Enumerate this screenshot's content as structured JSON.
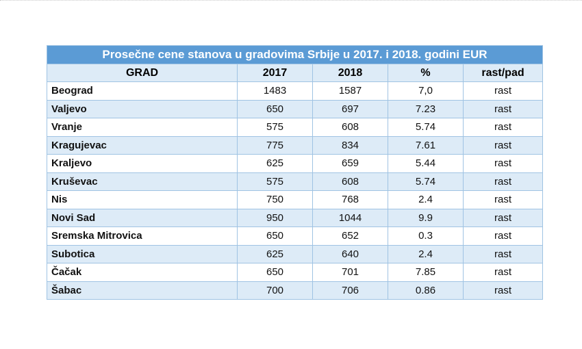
{
  "table": {
    "title": "Prosečne cene stanova u gradovima Srbije u 2017. i 2018. godini EUR",
    "headers": [
      "GRAD",
      "2017",
      "2018",
      "%",
      "rast/pad"
    ],
    "rows": [
      {
        "city": "Beograd",
        "y2017": "1483",
        "y2018": "1587",
        "pct": "7,0",
        "trend": "rast"
      },
      {
        "city": "Valjevo",
        "y2017": "650",
        "y2018": "697",
        "pct": "7.23",
        "trend": "rast"
      },
      {
        "city": "Vranje",
        "y2017": "575",
        "y2018": "608",
        "pct": "5.74",
        "trend": "rast"
      },
      {
        "city": "Kragujevac",
        "y2017": "775",
        "y2018": "834",
        "pct": "7.61",
        "trend": "rast"
      },
      {
        "city": "Kraljevo",
        "y2017": "625",
        "y2018": "659",
        "pct": "5.44",
        "trend": "rast"
      },
      {
        "city": "Kruševac",
        "y2017": "575",
        "y2018": "608",
        "pct": "5.74",
        "trend": "rast"
      },
      {
        "city": "Nis",
        "y2017": "750",
        "y2018": "768",
        "pct": "2.4",
        "trend": "rast"
      },
      {
        "city": "Novi Sad",
        "y2017": "950",
        "y2018": "1044",
        "pct": "9.9",
        "trend": "rast"
      },
      {
        "city": "Sremska Mitrovica",
        "y2017": "650",
        "y2018": "652",
        "pct": "0.3",
        "trend": "rast"
      },
      {
        "city": "Subotica",
        "y2017": "625",
        "y2018": "640",
        "pct": "2.4",
        "trend": "rast"
      },
      {
        "city": "Čačak",
        "y2017": "650",
        "y2018": "701",
        "pct": "7.85",
        "trend": "rast"
      },
      {
        "city": "Šabac",
        "y2017": "700",
        "y2018": "706",
        "pct": "0.86",
        "trend": "rast"
      }
    ]
  },
  "colors": {
    "title_bg": "#5b9bd5",
    "band": "#ddebf7",
    "border": "#9fc3e3"
  }
}
